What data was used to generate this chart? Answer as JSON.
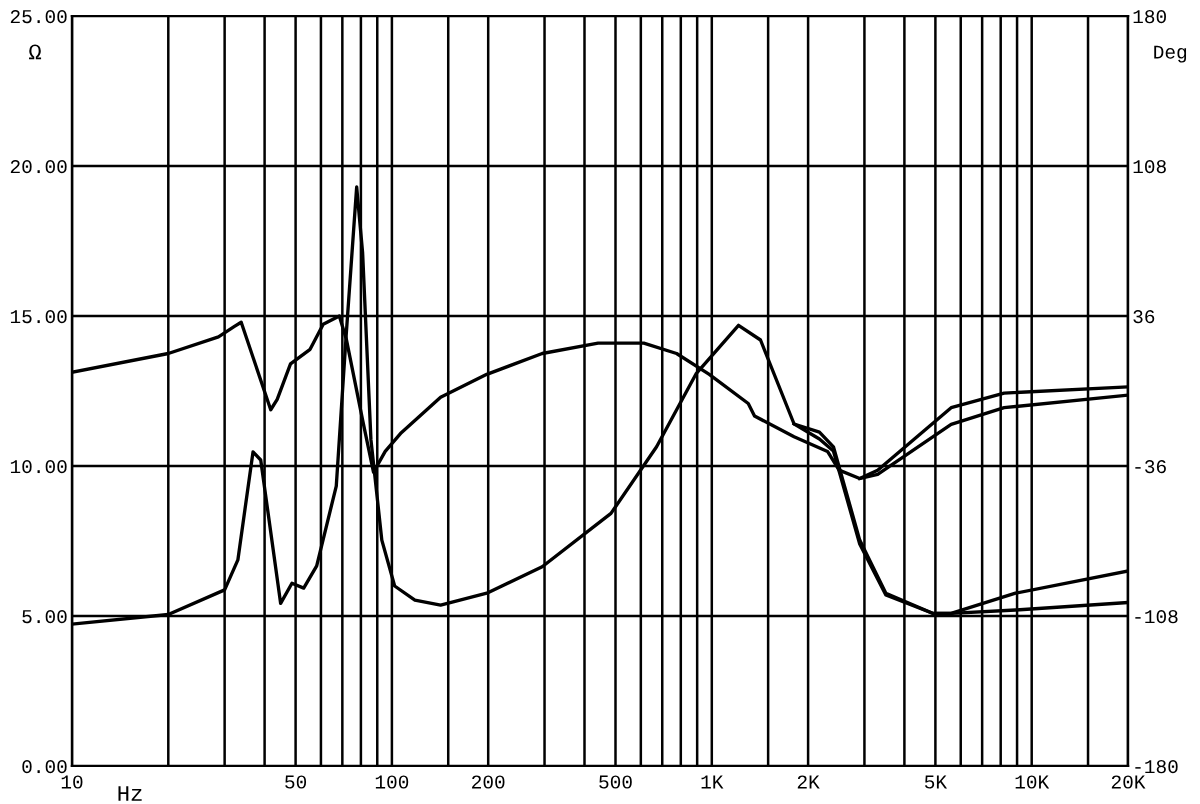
{
  "chart_data": {
    "type": "line",
    "xlabel": "Hz",
    "ylabel": "Ω",
    "y2label": "Deg",
    "log": "x",
    "grid": true,
    "marker": "none",
    "line_style": "solid",
    "xlim": [
      10,
      20000
    ],
    "ylim": [
      0,
      25
    ],
    "y2lim": [
      -180,
      180
    ],
    "xticks": [
      10,
      {
        "value": 20,
        "label": null
      },
      {
        "value": 30,
        "label": null
      },
      {
        "value": 40,
        "label": null
      },
      50,
      {
        "value": 60,
        "label": null
      },
      {
        "value": 70,
        "label": null
      },
      {
        "value": 80,
        "label": null
      },
      {
        "value": 90,
        "label": null
      },
      100,
      {
        "value": 150,
        "label": null
      },
      200,
      {
        "value": 300,
        "label": null
      },
      {
        "value": 400,
        "label": null
      },
      500,
      {
        "value": 600,
        "label": null
      },
      {
        "value": 700,
        "label": null
      },
      {
        "value": 800,
        "label": null
      },
      {
        "value": 900,
        "label": null
      },
      {
        "value": 1000,
        "label": "1K"
      },
      {
        "value": 1500,
        "label": null
      },
      {
        "value": 2000,
        "label": "2K"
      },
      {
        "value": 3000,
        "label": null
      },
      {
        "value": 4000,
        "label": null
      },
      {
        "value": 5000,
        "label": "5K"
      },
      {
        "value": 6000,
        "label": null
      },
      {
        "value": 7000,
        "label": null
      },
      {
        "value": 8000,
        "label": null
      },
      {
        "value": 9000,
        "label": null
      },
      {
        "value": 10000,
        "label": "10K"
      },
      {
        "value": 15000,
        "label": null
      },
      {
        "value": 20000,
        "label": "20K"
      }
    ],
    "yticks": [
      {
        "value": 0,
        "label": "0.00"
      },
      {
        "value": 5,
        "label": "5.00"
      },
      {
        "value": 10,
        "label": "10.00"
      },
      {
        "value": 15,
        "label": "15.00"
      },
      {
        "value": 20,
        "label": "20.00"
      },
      {
        "value": 25,
        "label": "25.00"
      }
    ],
    "y2ticks": [
      -180,
      -108,
      -36,
      36,
      108,
      180
    ],
    "series": [
      {
        "color": "#000000",
        "x": [
          10,
          20,
          30,
          33,
          36.8,
          38.9,
          44.9,
          48.7,
          53,
          58.2,
          67,
          72,
          77.6,
          81,
          86,
          93,
          102,
          118,
          142,
          198,
          295,
          484,
          672,
          895,
          1212,
          1420,
          1808,
          2170,
          2400,
          2900,
          3500,
          4900,
          5600,
          8900,
          20000
        ],
        "values": [
          4.73,
          5.05,
          5.87,
          6.87,
          10.47,
          10.2,
          5.42,
          6.09,
          5.93,
          6.67,
          9.33,
          14.4,
          19.3,
          17.1,
          10.87,
          7.53,
          6.0,
          5.53,
          5.36,
          5.76,
          6.64,
          8.42,
          10.64,
          13.09,
          14.69,
          14.2,
          11.4,
          11.13,
          10.64,
          7.53,
          5.76,
          5.09,
          5.09,
          5.76,
          6.5
        ]
      },
      {
        "color": "#000000",
        "x": [
          1808,
          2170,
          2400,
          2900,
          3500,
          4900,
          5600,
          8900,
          20000
        ],
        "values": [
          11.4,
          10.9,
          10.5,
          7.4,
          5.7,
          5.09,
          5.09,
          5.2,
          5.45
        ]
      },
      {
        "color": "#000000",
        "axis": "y2",
        "x": [
          10,
          20,
          28.7,
          32.2,
          33.8,
          41.8,
          43.8,
          48.2,
          55.5,
          61,
          68.5,
          72,
          81,
          87.6,
          95.3,
          107,
          142,
          198,
          295,
          441,
          613,
          776,
          982,
          1300,
          1360,
          1808,
          2300,
          2500,
          2900,
          3300,
          5600,
          8200,
          20000
        ],
        "values": [
          9,
          18,
          26,
          31,
          33,
          -9,
          -4,
          13,
          20,
          32,
          36,
          25,
          -14,
          -39,
          -29,
          -20,
          -3,
          8,
          18,
          23,
          23,
          18,
          8,
          -6,
          -12,
          -22,
          -29,
          -38,
          -42,
          -38,
          -8,
          -1,
          2
        ]
      },
      {
        "color": "#000000",
        "axis": "y2",
        "x": [
          2900,
          3300,
          5600,
          8200,
          20000
        ],
        "values": [
          -42,
          -40,
          -16,
          -8,
          -2
        ]
      }
    ]
  }
}
